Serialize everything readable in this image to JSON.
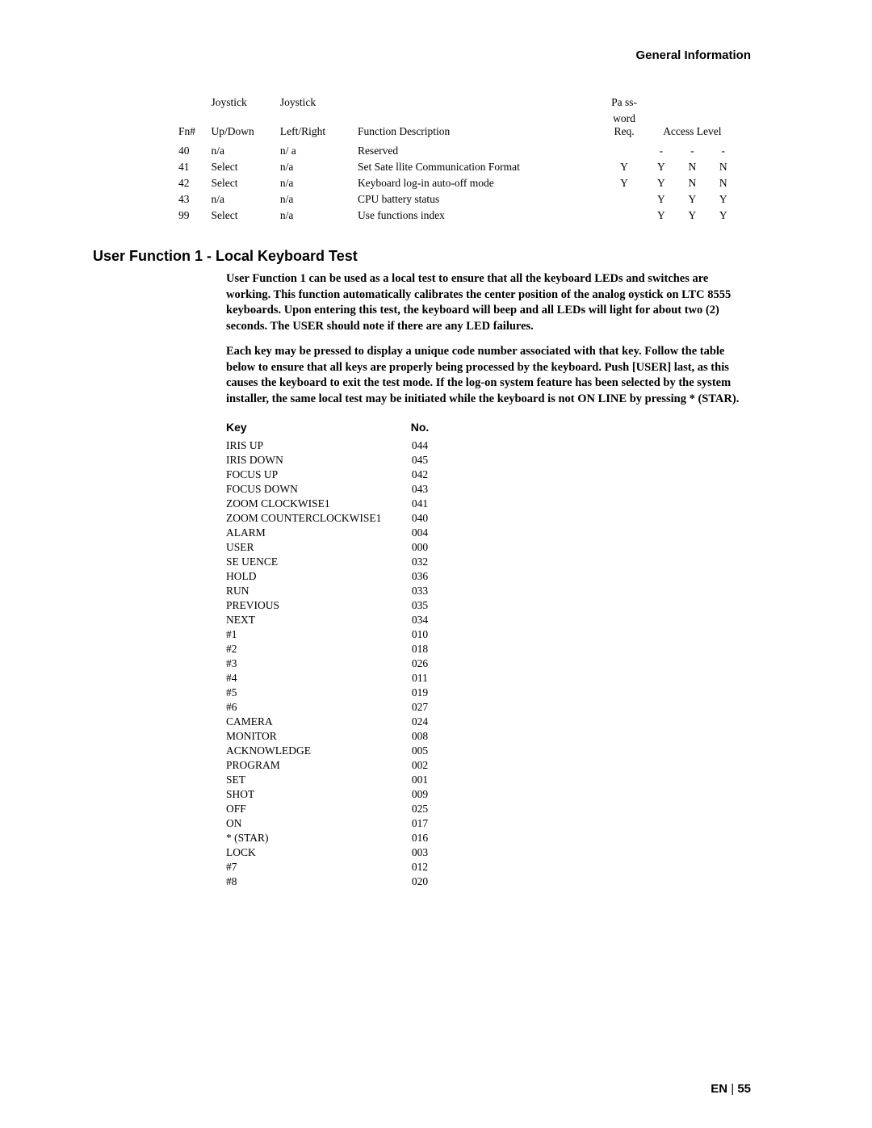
{
  "header": {
    "section_title": "General Information"
  },
  "fn_table": {
    "columns": {
      "fn": "Fn#",
      "updown": "Joystick\nUp/Down",
      "leftright": "Joystick\nLeft/Right",
      "funcdesc": "Function Description",
      "password": "Pa ss-\nword\nReq.",
      "access": "Access Level"
    },
    "rows": [
      {
        "fn": "40",
        "ud": "n/a",
        "lr": "n/ a",
        "fd": "Reserved",
        "pw": "",
        "a1": "-",
        "a2": "-",
        "a3": "-"
      },
      {
        "fn": "41",
        "ud": "Select",
        "lr": "n/a",
        "fd": "Set Sate  llite Communication Format",
        "pw": "Y",
        "a1": "Y",
        "a2": "N",
        "a3": "N"
      },
      {
        "fn": "42",
        "ud": "Select",
        "lr": "n/a",
        "fd": "Keyboard log-in auto-off mode",
        "pw": "Y",
        "a1": "Y",
        "a2": "N",
        "a3": "N"
      },
      {
        "fn": "43",
        "ud": "n/a",
        "lr": "n/a",
        "fd": "CPU battery status",
        "pw": "",
        "a1": "Y",
        "a2": "Y",
        "a3": "Y"
      },
      {
        "fn": "99",
        "ud": "Select",
        "lr": "n/a",
        "fd": "Use functions index",
        "pw": "",
        "a1": "Y",
        "a2": "Y",
        "a3": "Y"
      }
    ]
  },
  "section": {
    "heading": "User Function 1 - Local Keyboard Test",
    "para1": "User Function 1 can be used as a local test to ensure that all the keyboard LEDs and switches are working. This function automatically calibrates the center position of the analog  oystick on LTC 8555 keyboards. Upon entering this test, the keyboard will beep and all LEDs will light for about two (2) seconds. The USER should note if there are any LED failures.",
    "para2": "Each key may be pressed to display a unique code number associated with that key. Follow the table below to ensure that all keys are properly being processed by the keyboard. Push [USER] last, as this causes the keyboard to exit the test mode. If the log-on system feature has been selected by the system installer, the same local test may be initiated while the keyboard is not ON LINE by pressing * (STAR)."
  },
  "key_table": {
    "columns": {
      "key": "Key",
      "no": "No."
    },
    "rows": [
      {
        "key": "IRIS UP",
        "no": "044"
      },
      {
        "key": "IRIS DOWN",
        "no": "045"
      },
      {
        "key": "FOCUS UP",
        "no": "042"
      },
      {
        "key": "FOCUS DOWN",
        "no": "043"
      },
      {
        "key": "ZOOM CLOCKWISE1",
        "no": "041"
      },
      {
        "key": "ZOOM COUNTERCLOCKWISE1",
        "no": "040"
      },
      {
        "key": "ALARM",
        "no": "004"
      },
      {
        "key": "USER",
        "no": "000"
      },
      {
        "key": "SE UENCE",
        "no": "032"
      },
      {
        "key": "HOLD",
        "no": "036"
      },
      {
        "key": "RUN",
        "no": "033"
      },
      {
        "key": "PREVIOUS",
        "no": "035"
      },
      {
        "key": "NEXT",
        "no": "034"
      },
      {
        "key": "#1",
        "no": "010"
      },
      {
        "key": "#2",
        "no": "018"
      },
      {
        "key": "#3",
        "no": "026"
      },
      {
        "key": "#4",
        "no": "011"
      },
      {
        "key": "#5",
        "no": "019"
      },
      {
        "key": "#6",
        "no": "027"
      },
      {
        "key": "CAMERA",
        "no": "024"
      },
      {
        "key": "MONITOR",
        "no": "008"
      },
      {
        "key": "ACKNOWLEDGE",
        "no": "005"
      },
      {
        "key": "PROGRAM",
        "no": "002"
      },
      {
        "key": "SET",
        "no": "001"
      },
      {
        "key": "SHOT",
        "no": "009"
      },
      {
        "key": "OFF",
        "no": "025"
      },
      {
        "key": "ON",
        "no": "017"
      },
      {
        "key": "* (STAR)",
        "no": "016"
      },
      {
        "key": "LOCK",
        "no": "003"
      },
      {
        "key": "#7",
        "no": "012"
      },
      {
        "key": "#8",
        "no": "020"
      }
    ]
  },
  "footer": {
    "lang": "EN",
    "sep": " | ",
    "page": "55"
  }
}
